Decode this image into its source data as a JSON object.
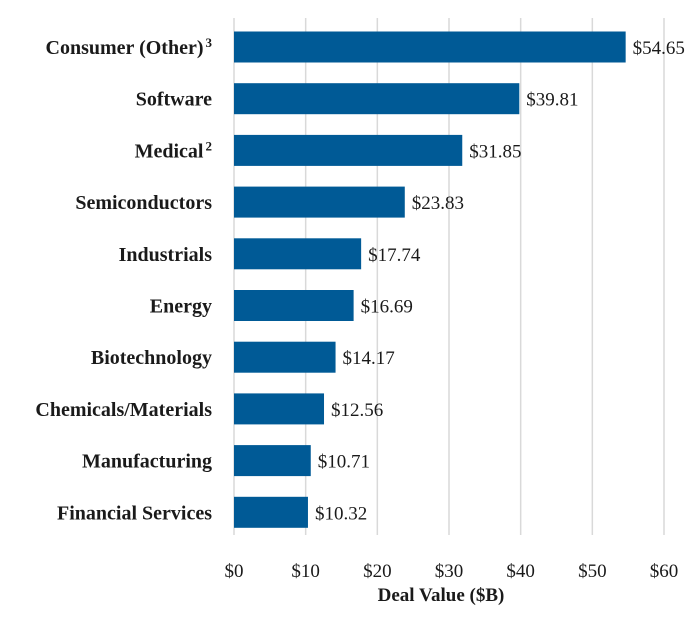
{
  "chart_data": {
    "type": "bar",
    "orientation": "horizontal",
    "categories": [
      "Consumer (Other)",
      "Software",
      "Medical",
      "Semiconductors",
      "Industrials",
      "Energy",
      "Biotechnology",
      "Chemicals/Materials",
      "Manufacturing",
      "Financial Services"
    ],
    "category_footnotes": [
      "3",
      "",
      "2",
      "",
      "",
      "",
      "",
      "",
      "",
      ""
    ],
    "values": [
      54.65,
      39.81,
      31.85,
      23.83,
      17.74,
      16.69,
      14.17,
      12.56,
      10.71,
      10.32
    ],
    "value_labels": [
      "$54.65",
      "$39.81",
      "$31.85",
      "$23.83",
      "$17.74",
      "$16.69",
      "$14.17",
      "$12.56",
      "$10.71",
      "$10.32"
    ],
    "xlabel": "Deal Value ($B)",
    "ylabel": "",
    "xlim": [
      0,
      60
    ],
    "x_ticks": [
      0,
      10,
      20,
      30,
      40,
      50,
      60
    ],
    "x_tick_labels": [
      "$0",
      "$10",
      "$20",
      "$30",
      "$40",
      "$50",
      "$60"
    ],
    "grid": "vertical",
    "bar_color": "#005a96",
    "grid_color": "#d9d9d9"
  }
}
